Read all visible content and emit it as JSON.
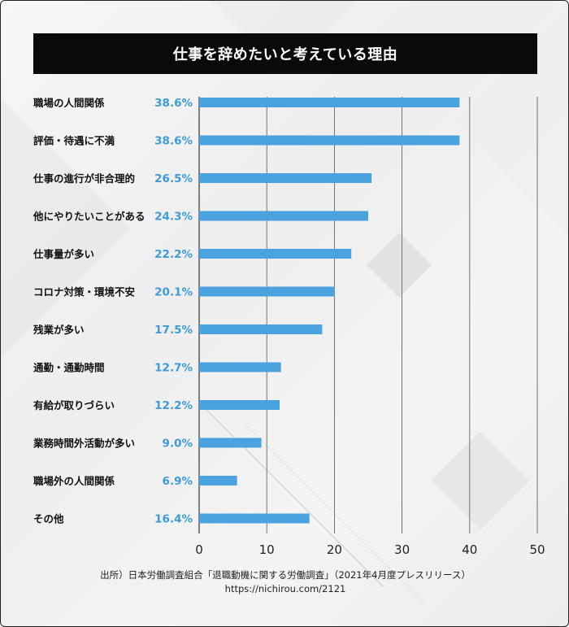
{
  "page": {
    "title": "仕事を辞めたいと考えている理由",
    "footer_source": "出所）日本労働調査組合「退職動機に関する労働調査」（2021年4月度プレスリリース）",
    "footer_url": "https://nichirou.com/2121"
  },
  "colors": {
    "bar": "#4aa3df",
    "value_text": "#3d9bd8",
    "title_bg": "#0a0a0a"
  },
  "chart_data": {
    "type": "bar",
    "orientation": "horizontal",
    "title": "仕事を辞めたいと考えている理由",
    "categories": [
      "職場の人間関係",
      "評価・待遇に不満",
      "仕事の進行が非合理的",
      "他にやりたいことがある",
      "仕事量が多い",
      "コロナ対策・環境不安",
      "残業が多い",
      "通勤・通勤時間",
      "有給が取りづらい",
      "業務時間外活動が多い",
      "職場外の人間関係",
      "その他"
    ],
    "values": [
      38.6,
      38.6,
      26.5,
      24.3,
      22.2,
      20.1,
      17.5,
      12.7,
      12.2,
      9.0,
      6.9,
      16.4
    ],
    "value_labels": [
      "38.6%",
      "38.6%",
      "26.5%",
      "24.3%",
      "22.2%",
      "20.1%",
      "17.5%",
      "12.7%",
      "12.2%",
      "9.0%",
      "6.9%",
      "16.4%"
    ],
    "bar_lengths": [
      38.5,
      38.5,
      25.5,
      25.0,
      22.5,
      20.0,
      18.2,
      12.1,
      11.9,
      9.2,
      5.6,
      16.3
    ],
    "xlim": [
      0,
      50
    ],
    "xticks": [
      "0",
      "10",
      "20",
      "30",
      "40",
      "50"
    ],
    "xlabel": "",
    "ylabel": "",
    "grid": true
  }
}
